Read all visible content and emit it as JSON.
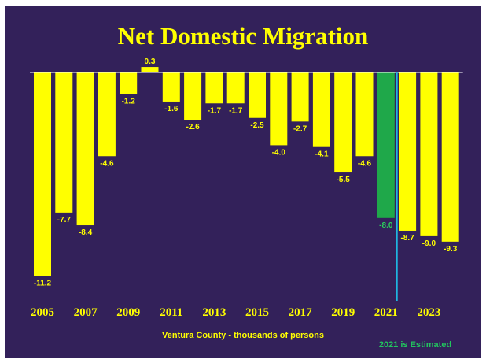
{
  "chart_data": {
    "type": "bar",
    "title": "Net Domestic Migration",
    "xlabel": "Ventura County - thousands of persons",
    "ylabel": "",
    "note": "2021 is Estimated",
    "categories": [
      "2005",
      "2006",
      "2007",
      "2008",
      "2009",
      "2010",
      "2011",
      "2012",
      "2013",
      "2014",
      "2015",
      "2016",
      "2017",
      "2018",
      "2019",
      "2020",
      "2021",
      "2022",
      "2023",
      "2024"
    ],
    "values": [
      -11.2,
      -7.7,
      -8.4,
      -4.6,
      -1.2,
      0.3,
      -1.6,
      -2.6,
      -1.7,
      -1.7,
      -2.5,
      -4.0,
      -2.7,
      -4.1,
      -5.5,
      -4.6,
      -8.0,
      -8.7,
      -9.0,
      -9.3
    ],
    "value_labels": [
      "-11.2",
      "-7.7",
      "-8.4",
      "-4.6",
      "-1.2",
      "0.3",
      "-1.6",
      "-2.6",
      "-1.7",
      "-1.7",
      "-2.5",
      "-4.0",
      "-2.7",
      "-4.1",
      "-5.5",
      "-4.6",
      "-8.0",
      "-8.7",
      "-9.0",
      "-9.3"
    ],
    "tick_labels": [
      "2005",
      "2007",
      "2009",
      "2011",
      "2013",
      "2015",
      "2017",
      "2019",
      "2021",
      "2023"
    ],
    "highlight_category": "2021",
    "estimate_divider_after": "2021",
    "ylim": [
      -11.5,
      0.4
    ],
    "grid": false,
    "legend": "none",
    "colors": {
      "background": "#33215a",
      "bar": "#ffff00",
      "highlight_bar": "#1fa84a",
      "highlight_label": "#2bd15c",
      "title": "#ffff00",
      "labels": "#ffff00",
      "note": "#22c55e",
      "divider": "#1fb6e0",
      "axis": "#ffffff"
    }
  }
}
